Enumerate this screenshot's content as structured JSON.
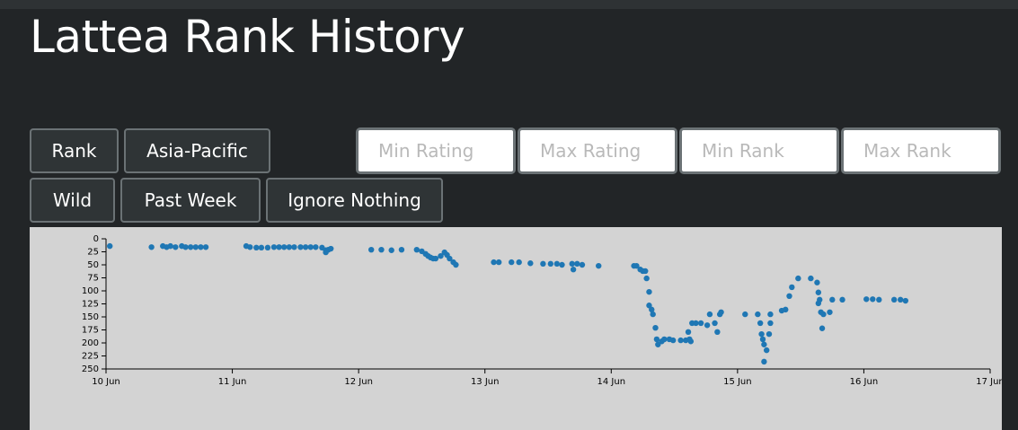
{
  "header": {
    "title": "Lattea Rank History"
  },
  "controls": {
    "row1": [
      "Rank",
      "Asia-Pacific"
    ],
    "inputs": [
      "Min Rating",
      "Max Rating",
      "Min Rank",
      "Max Rank"
    ],
    "row2": [
      "Wild",
      "Past Week",
      "Ignore Nothing"
    ]
  },
  "chart_data": {
    "type": "scatter",
    "color": "#1f77b4",
    "y_inverted": true,
    "xlim": [
      10,
      17
    ],
    "xticks": [
      {
        "value": 10,
        "label": "10 Jun"
      },
      {
        "value": 11,
        "label": "11 Jun"
      },
      {
        "value": 12,
        "label": "12 Jun"
      },
      {
        "value": 13,
        "label": "13 Jun"
      },
      {
        "value": 14,
        "label": "14 Jun"
      },
      {
        "value": 15,
        "label": "15 Jun"
      },
      {
        "value": 16,
        "label": "16 Jun"
      },
      {
        "value": 17,
        "label": "17 Jun"
      }
    ],
    "ylim": [
      0,
      250
    ],
    "yticks": [
      0,
      25,
      50,
      75,
      100,
      125,
      150,
      175,
      200,
      225,
      250
    ],
    "x": [
      10.03,
      10.36,
      10.45,
      10.48,
      10.51,
      10.55,
      10.6,
      10.63,
      10.67,
      10.71,
      10.75,
      10.79,
      11.11,
      11.14,
      11.19,
      11.23,
      11.28,
      11.33,
      11.37,
      11.41,
      11.45,
      11.49,
      11.54,
      11.58,
      11.62,
      11.66,
      11.71,
      11.74,
      11.76,
      11.78,
      11.74,
      12.1,
      12.18,
      12.26,
      12.34,
      12.46,
      12.5,
      12.53,
      12.55,
      12.57,
      12.59,
      12.61,
      12.65,
      12.68,
      12.7,
      12.72,
      12.75,
      12.77,
      13.07,
      13.11,
      13.21,
      13.27,
      13.36,
      13.46,
      13.52,
      13.57,
      13.61,
      13.69,
      13.7,
      13.73,
      13.77,
      13.9,
      14.18,
      14.2,
      14.23,
      14.25,
      14.27,
      14.28,
      14.3,
      14.3,
      14.32,
      14.33,
      14.35,
      14.36,
      14.37,
      14.4,
      14.42,
      14.46,
      14.49,
      14.55,
      14.59,
      14.62,
      14.61,
      14.63,
      14.64,
      14.67,
      14.71,
      14.76,
      14.78,
      14.82,
      14.84,
      14.86,
      14.87,
      15.06,
      15.16,
      15.18,
      15.19,
      15.2,
      15.21,
      15.21,
      15.23,
      15.25,
      15.26,
      15.26,
      15.35,
      15.38,
      15.41,
      15.43,
      15.48,
      15.58,
      15.63,
      15.64,
      15.65,
      15.64,
      15.66,
      15.67,
      15.68,
      15.73,
      15.75,
      15.83,
      16.02,
      16.07,
      16.12,
      16.24,
      16.29,
      16.33
    ],
    "values": [
      14,
      16,
      14,
      16,
      14,
      16,
      14,
      16,
      16,
      16,
      16,
      16,
      14,
      16,
      17,
      17,
      17,
      16,
      16,
      16,
      16,
      16,
      16,
      16,
      16,
      16,
      17,
      22,
      21,
      19,
      26,
      21,
      21,
      22,
      21,
      21,
      24,
      29,
      33,
      36,
      38,
      38,
      33,
      26,
      31,
      38,
      45,
      50,
      45,
      45,
      45,
      45,
      47,
      48,
      48,
      48,
      50,
      48,
      59,
      48,
      50,
      52,
      52,
      52,
      59,
      62,
      62,
      76,
      102,
      128,
      136,
      145,
      171,
      193,
      203,
      197,
      193,
      193,
      195,
      195,
      195,
      193,
      179,
      197,
      162,
      162,
      162,
      166,
      145,
      162,
      179,
      145,
      141,
      145,
      145,
      162,
      183,
      193,
      203,
      236,
      214,
      183,
      162,
      145,
      138,
      136,
      110,
      93,
      76,
      76,
      84,
      103,
      117,
      124,
      141,
      172,
      145,
      141,
      117,
      117,
      116,
      116,
      117,
      117,
      117,
      119
    ]
  }
}
